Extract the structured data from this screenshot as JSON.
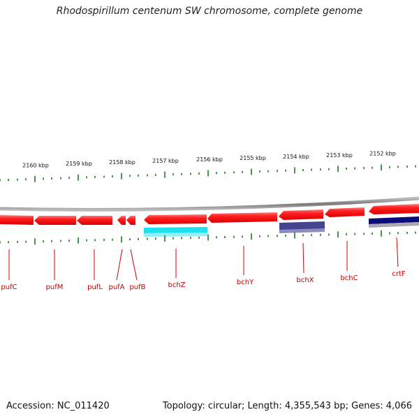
{
  "title": "Rhodospirillum centenum SW chromosome, complete genome",
  "accession": "Accession: NC_011420",
  "topology": "Topology: circular; Length: 4,355,543 bp; Genes: 4,066",
  "scale_labels": [
    "2160 kbp",
    "2159 kbp",
    "2158 kbp",
    "2157 kbp",
    "2156 kbp",
    "2155 kbp",
    "2154 kbp",
    "2153 kbp",
    "2152 kbp"
  ],
  "genes": [
    "pufC",
    "pufM",
    "pufL",
    "pufA",
    "pufB",
    "bchZ",
    "bchY",
    "bchX",
    "bchC",
    "crtF"
  ],
  "colors": {
    "gene": "#ee0000",
    "gene_light": "#ff6a6a",
    "backbone": "#8a8a8a",
    "tick": "#1e7a1e",
    "label": "#c00000",
    "cyan": "#1ee0ee",
    "purple": "#45458f",
    "navy": "#0b0b7a",
    "grey_bar": "#a8a8b0"
  }
}
